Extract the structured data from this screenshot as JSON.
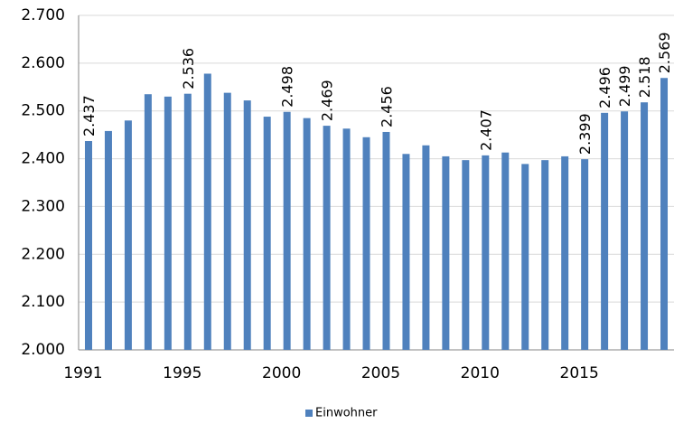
{
  "chart_data": {
    "type": "bar",
    "categories": [
      "1991",
      null,
      null,
      null,
      null,
      "1995",
      null,
      null,
      null,
      null,
      "2000",
      null,
      null,
      null,
      null,
      "2005",
      null,
      null,
      null,
      null,
      "2010",
      null,
      null,
      null,
      null,
      "2015",
      null,
      null,
      null,
      null
    ],
    "series": [
      {
        "name": "Einwohner",
        "color": "#4f81bd",
        "values": [
          2437,
          2458,
          2480,
          2535,
          2530,
          2536,
          2578,
          2538,
          2522,
          2488,
          2498,
          2485,
          2469,
          2463,
          2445,
          2456,
          2410,
          2428,
          2405,
          2397,
          2407,
          2413,
          2389,
          2397,
          2405,
          2399,
          2496,
          2499,
          2518,
          2569
        ],
        "value_labels": [
          "2.437",
          null,
          null,
          null,
          null,
          "2.536",
          null,
          null,
          null,
          null,
          "2.498",
          null,
          "2.469",
          null,
          null,
          "2.456",
          null,
          null,
          null,
          null,
          "2.407",
          null,
          null,
          null,
          null,
          "2.399",
          "2.496",
          "2.499",
          "2.518",
          "2.569"
        ]
      }
    ],
    "ylim": [
      2000,
      2700
    ],
    "yticks": [
      {
        "value": 2000,
        "label": "2.000"
      },
      {
        "value": 2100,
        "label": "2.100"
      },
      {
        "value": 2200,
        "label": "2.200"
      },
      {
        "value": 2300,
        "label": "2.300"
      },
      {
        "value": 2400,
        "label": "2.400"
      },
      {
        "value": 2500,
        "label": "2.500"
      },
      {
        "value": 2600,
        "label": "2.600"
      },
      {
        "value": 2700,
        "label": "2.700"
      }
    ],
    "grid": true,
    "legend": "bottom"
  }
}
